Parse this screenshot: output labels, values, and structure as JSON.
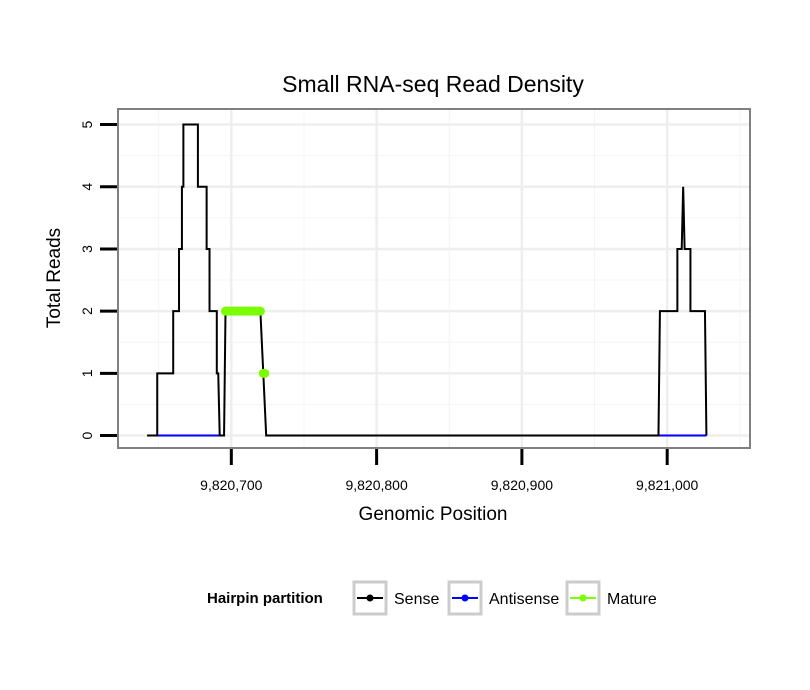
{
  "chart_data": {
    "type": "line",
    "title": "Small RNA-seq Read Density",
    "xlabel": "Genomic Position",
    "ylabel": "Total Reads",
    "xlim": [
      9820622,
      9821057
    ],
    "ylim": [
      -0.2,
      5.25
    ],
    "x_ticks": [
      9820700,
      9820800,
      9820900,
      9821000
    ],
    "x_tick_labels": [
      "9,820,700",
      "9,820,800",
      "9,820,900",
      "9,821,000"
    ],
    "y_ticks": [
      0,
      1,
      2,
      3,
      4,
      5
    ],
    "y_tick_labels": [
      "0",
      "1",
      "2",
      "3",
      "4",
      "5"
    ],
    "grid": true,
    "legend": {
      "title": "Hairpin partition",
      "placement": "bottom",
      "entries": [
        {
          "name": "Sense",
          "color": "#000000"
        },
        {
          "name": "Antisense",
          "color": "#0000ff"
        },
        {
          "name": "Mature",
          "color": "#7cfc00"
        }
      ]
    },
    "series": [
      {
        "name": "Sense",
        "color": "#000000",
        "points": [
          [
            9820642,
            0
          ],
          [
            9820649,
            0
          ],
          [
            9820649,
            1
          ],
          [
            9820660,
            1
          ],
          [
            9820660,
            2
          ],
          [
            9820664,
            2
          ],
          [
            9820664,
            3
          ],
          [
            9820666,
            3
          ],
          [
            9820666,
            4
          ],
          [
            9820667,
            4
          ],
          [
            9820667,
            5
          ],
          [
            9820677,
            5
          ],
          [
            9820677,
            4
          ],
          [
            9820683,
            4
          ],
          [
            9820683,
            3
          ],
          [
            9820685,
            3
          ],
          [
            9820685,
            2
          ],
          [
            9820690,
            2
          ],
          [
            9820690,
            1
          ],
          [
            9820691,
            1
          ],
          [
            9820692,
            0
          ],
          [
            9820695,
            0
          ],
          [
            9820696,
            2
          ],
          [
            9820720,
            2
          ],
          [
            9820722,
            1
          ],
          [
            9820724,
            0
          ],
          [
            9820725,
            0
          ],
          [
            9820994,
            0
          ],
          [
            9820995,
            2
          ],
          [
            9821007,
            2
          ],
          [
            9821007,
            3
          ],
          [
            9821010,
            3
          ],
          [
            9821011,
            4
          ],
          [
            9821012,
            3
          ],
          [
            9821016,
            3
          ],
          [
            9821016,
            2
          ],
          [
            9821026,
            2
          ],
          [
            9821027,
            0
          ]
        ]
      },
      {
        "name": "Antisense",
        "color": "#0000ff",
        "segments": [
          [
            9820649,
            9820692
          ],
          [
            9820724,
            9820725
          ],
          [
            9820994,
            9821027
          ]
        ],
        "value": 0
      },
      {
        "name": "Mature",
        "color": "#7cfc00",
        "points": [
          [
            9820696,
            2
          ],
          [
            9820697,
            2
          ],
          [
            9820698,
            2
          ],
          [
            9820699,
            2
          ],
          [
            9820700,
            2
          ],
          [
            9820701,
            2
          ],
          [
            9820702,
            2
          ],
          [
            9820703,
            2
          ],
          [
            9820704,
            2
          ],
          [
            9820705,
            2
          ],
          [
            9820706,
            2
          ],
          [
            9820707,
            2
          ],
          [
            9820708,
            2
          ],
          [
            9820709,
            2
          ],
          [
            9820710,
            2
          ],
          [
            9820711,
            2
          ],
          [
            9820712,
            2
          ],
          [
            9820713,
            2
          ],
          [
            9820714,
            2
          ],
          [
            9820715,
            2
          ],
          [
            9820716,
            2
          ],
          [
            9820717,
            2
          ],
          [
            9820718,
            2
          ],
          [
            9820719,
            2
          ],
          [
            9820720,
            2
          ],
          [
            9820722,
            1
          ],
          [
            9820723,
            1
          ]
        ]
      }
    ]
  }
}
